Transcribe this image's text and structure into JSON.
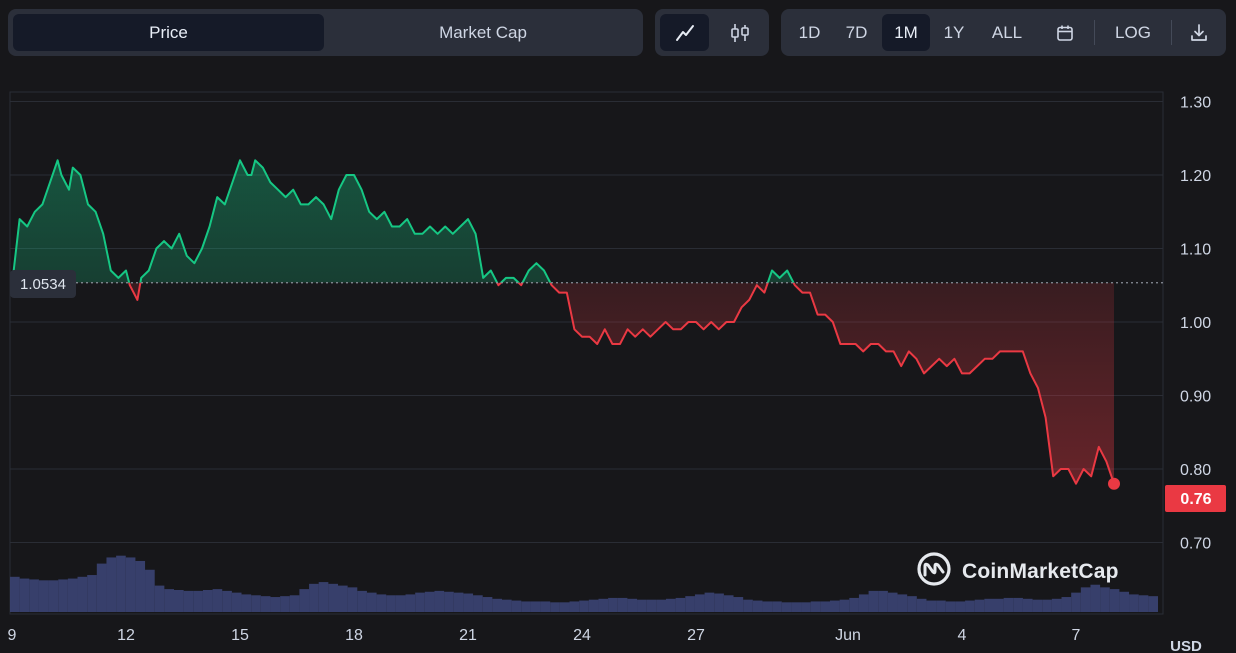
{
  "toolbar": {
    "metric_tabs": [
      {
        "label": "Price",
        "active": true
      },
      {
        "label": "Market Cap",
        "active": false
      }
    ],
    "chart_type_buttons": [
      {
        "icon": "line-chart-icon",
        "active": true
      },
      {
        "icon": "candlestick-icon",
        "active": false
      }
    ],
    "range_buttons": [
      {
        "label": "1D",
        "active": false
      },
      {
        "label": "7D",
        "active": false
      },
      {
        "label": "1M",
        "active": true
      },
      {
        "label": "1Y",
        "active": false
      },
      {
        "label": "ALL",
        "active": false
      }
    ],
    "calendar_icon": "calendar-icon",
    "log_label": "LOG",
    "download_icon": "download-icon"
  },
  "watermark": {
    "text": "CoinMarketCap",
    "icon": "coinmarketcap-logo-icon"
  },
  "colors": {
    "background": "#17171a",
    "up": "#16c784",
    "down": "#ea3943",
    "volume": "#3b4474",
    "grid": "#2a2d35",
    "panel": "#2b2f3a"
  },
  "chart_data": {
    "type": "line",
    "currency_label": "USD",
    "baseline": {
      "value": 1.0534,
      "label": "1.0534"
    },
    "current": {
      "value": 0.76,
      "label": "0.76"
    },
    "ylim": [
      0.6,
      1.3
    ],
    "y_ticks": [
      "0.70",
      "0.80",
      "0.90",
      "1.00",
      "1.10",
      "1.20",
      "1.30"
    ],
    "x_ticks": [
      {
        "label": "9",
        "day": 0
      },
      {
        "label": "12",
        "day": 3
      },
      {
        "label": "15",
        "day": 6
      },
      {
        "label": "18",
        "day": 9
      },
      {
        "label": "21",
        "day": 12
      },
      {
        "label": "24",
        "day": 15
      },
      {
        "label": "27",
        "day": 18
      },
      {
        "label": "Jun",
        "day": 22
      },
      {
        "label": "4",
        "day": 25
      },
      {
        "label": "7",
        "day": 28
      }
    ],
    "price_series": {
      "day": [
        0,
        0.2,
        0.4,
        0.6,
        0.8,
        1.0,
        1.2,
        1.3,
        1.5,
        1.6,
        1.8,
        2.0,
        2.2,
        2.4,
        2.6,
        2.8,
        3.0,
        3.1,
        3.3,
        3.4,
        3.6,
        3.8,
        4.0,
        4.2,
        4.4,
        4.6,
        4.8,
        5.0,
        5.2,
        5.4,
        5.6,
        5.8,
        6.0,
        6.2,
        6.3,
        6.4,
        6.6,
        6.8,
        7.0,
        7.2,
        7.4,
        7.6,
        7.8,
        8.0,
        8.2,
        8.4,
        8.6,
        8.8,
        9.0,
        9.2,
        9.4,
        9.6,
        9.8,
        10.0,
        10.2,
        10.4,
        10.6,
        10.8,
        11.0,
        11.2,
        11.4,
        11.6,
        11.8,
        12.0,
        12.2,
        12.4,
        12.6,
        12.8,
        13.0,
        13.2,
        13.4,
        13.6,
        13.8,
        14.0,
        14.2,
        14.4,
        14.6,
        14.8,
        15.0,
        15.2,
        15.4,
        15.6,
        15.8,
        16.0,
        16.2,
        16.4,
        16.6,
        16.8,
        17.0,
        17.2,
        17.4,
        17.6,
        17.8,
        18.0,
        18.2,
        18.4,
        18.6,
        18.8,
        19.0,
        19.2,
        19.4,
        19.6,
        19.8,
        20.0,
        20.2,
        20.4,
        20.6,
        20.8,
        21.0,
        21.2,
        21.4,
        21.6,
        21.8,
        22.0,
        22.2,
        22.4,
        22.6,
        22.8,
        23.0,
        23.2,
        23.4,
        23.6,
        23.8,
        24.0,
        24.2,
        24.4,
        24.6,
        24.8,
        25.0,
        25.2,
        25.4,
        25.6,
        25.8,
        26.0,
        26.2,
        26.4,
        26.6,
        26.8,
        27.0,
        27.2,
        27.4,
        27.6,
        27.8,
        28.0,
        28.2,
        28.4,
        28.6,
        28.8,
        29.0
      ],
      "price": [
        1.05,
        1.14,
        1.13,
        1.15,
        1.16,
        1.19,
        1.22,
        1.2,
        1.18,
        1.21,
        1.2,
        1.16,
        1.15,
        1.12,
        1.07,
        1.06,
        1.07,
        1.05,
        1.03,
        1.06,
        1.07,
        1.1,
        1.11,
        1.1,
        1.12,
        1.09,
        1.08,
        1.1,
        1.13,
        1.17,
        1.16,
        1.19,
        1.22,
        1.2,
        1.2,
        1.22,
        1.21,
        1.19,
        1.18,
        1.17,
        1.18,
        1.16,
        1.16,
        1.17,
        1.16,
        1.14,
        1.18,
        1.2,
        1.2,
        1.18,
        1.15,
        1.14,
        1.15,
        1.13,
        1.13,
        1.14,
        1.12,
        1.12,
        1.13,
        1.12,
        1.13,
        1.12,
        1.13,
        1.14,
        1.12,
        1.06,
        1.07,
        1.05,
        1.06,
        1.06,
        1.05,
        1.07,
        1.08,
        1.07,
        1.05,
        1.04,
        1.04,
        0.99,
        0.98,
        0.98,
        0.97,
        0.99,
        0.97,
        0.97,
        0.99,
        0.98,
        0.99,
        0.98,
        0.99,
        1.0,
        0.99,
        0.99,
        1.0,
        1.0,
        0.99,
        1.0,
        0.99,
        1.0,
        1.0,
        1.02,
        1.03,
        1.05,
        1.04,
        1.07,
        1.06,
        1.07,
        1.05,
        1.04,
        1.04,
        1.01,
        1.01,
        1.0,
        0.97,
        0.97,
        0.97,
        0.96,
        0.97,
        0.97,
        0.96,
        0.96,
        0.94,
        0.96,
        0.95,
        0.93,
        0.94,
        0.95,
        0.94,
        0.95,
        0.93,
        0.93,
        0.94,
        0.95,
        0.95,
        0.96,
        0.96,
        0.96,
        0.96,
        0.93,
        0.91,
        0.87,
        0.79,
        0.8,
        0.8,
        0.78,
        0.8,
        0.79,
        0.83,
        0.81,
        0.78,
        0.78,
        0.77,
        0.76
      ]
    },
    "volume_series": {
      "note_units": "relative",
      "values": [
        0.4,
        0.38,
        0.37,
        0.36,
        0.36,
        0.37,
        0.38,
        0.4,
        0.42,
        0.55,
        0.62,
        0.64,
        0.62,
        0.58,
        0.48,
        0.3,
        0.26,
        0.25,
        0.24,
        0.24,
        0.25,
        0.26,
        0.24,
        0.22,
        0.2,
        0.19,
        0.18,
        0.17,
        0.18,
        0.19,
        0.26,
        0.32,
        0.34,
        0.32,
        0.3,
        0.28,
        0.24,
        0.22,
        0.2,
        0.19,
        0.19,
        0.2,
        0.22,
        0.23,
        0.24,
        0.23,
        0.22,
        0.21,
        0.19,
        0.17,
        0.15,
        0.14,
        0.13,
        0.12,
        0.12,
        0.12,
        0.11,
        0.11,
        0.12,
        0.13,
        0.14,
        0.15,
        0.16,
        0.16,
        0.15,
        0.14,
        0.14,
        0.14,
        0.15,
        0.16,
        0.18,
        0.2,
        0.22,
        0.21,
        0.19,
        0.17,
        0.14,
        0.13,
        0.12,
        0.12,
        0.11,
        0.11,
        0.11,
        0.12,
        0.12,
        0.13,
        0.14,
        0.16,
        0.2,
        0.24,
        0.24,
        0.22,
        0.2,
        0.18,
        0.15,
        0.13,
        0.13,
        0.12,
        0.12,
        0.13,
        0.14,
        0.15,
        0.15,
        0.16,
        0.16,
        0.15,
        0.14,
        0.14,
        0.15,
        0.17,
        0.22,
        0.28,
        0.31,
        0.28,
        0.26,
        0.23,
        0.2,
        0.19,
        0.18
      ]
    }
  }
}
